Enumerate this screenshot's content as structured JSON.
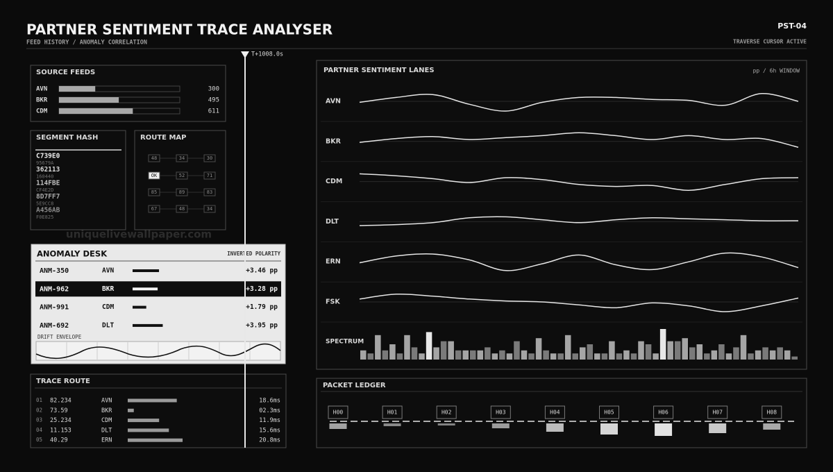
{
  "header": {
    "title": "PARTNER SENTIMENT TRACE ANALYSER",
    "subtitle": "FEED HISTORY / ANOMALY CORRELATION",
    "code": "PST-04",
    "status": "TRAVERSE CURSOR ACTIVE"
  },
  "watermark": "uniquelivewallpaper.com",
  "cursor": {
    "label": "T+1008.0s"
  },
  "source_feeds": {
    "title": "SOURCE FEEDS",
    "xlim": [
      0,
      1000
    ],
    "rows": [
      {
        "label": "AVN",
        "value": 300
      },
      {
        "label": "BKR",
        "value": 495
      },
      {
        "label": "CDM",
        "value": 611
      }
    ]
  },
  "segment_hash": {
    "title": "SEGMENT HASH",
    "items": [
      {
        "code": "C739E0",
        "sub": "95679A"
      },
      {
        "code": "362113",
        "sub": "160440"
      },
      {
        "code": "114FBE",
        "sub": "CF4E2D"
      },
      {
        "code": "8D7FF7",
        "sub": "5E9CC8"
      },
      {
        "code": "A456AB",
        "sub": "F0E825"
      }
    ]
  },
  "route_map": {
    "title": "ROUTE MAP",
    "grid": [
      [
        48,
        34,
        30
      ],
      [
        "OK",
        52,
        71
      ],
      [
        85,
        89,
        83
      ],
      [
        67,
        48,
        34
      ]
    ]
  },
  "anomaly_desk": {
    "title": "ANOMALY DESK",
    "tag": "INVERTED POLARITY",
    "selected": 1,
    "rows": [
      {
        "id": "ANM-350",
        "feed": "AVN",
        "value": 3.46,
        "value_label": "+3.46 pp"
      },
      {
        "id": "ANM-962",
        "feed": "BKR",
        "value": 3.28,
        "value_label": "+3.28 pp"
      },
      {
        "id": "ANM-991",
        "feed": "CDM",
        "value": 1.79,
        "value_label": "+1.79 pp"
      },
      {
        "id": "ANM-692",
        "feed": "DLT",
        "value": 3.95,
        "value_label": "+3.95 pp"
      }
    ],
    "drift_label": "DRIFT ENVELOPE"
  },
  "trace_route": {
    "title": "TRACE ROUTE",
    "rows": [
      {
        "index": "01",
        "value": 82.234,
        "feed": "AVN",
        "latency": 18.6,
        "latency_label": "18.6ms"
      },
      {
        "index": "02",
        "value": 73.59,
        "feed": "BKR",
        "latency": 2.3,
        "latency_label": "02.3ms"
      },
      {
        "index": "03",
        "value": 25.234,
        "feed": "CDM",
        "latency": 11.9,
        "latency_label": "11.9ms"
      },
      {
        "index": "04",
        "value": 11.153,
        "feed": "DLT",
        "latency": 15.6,
        "latency_label": "15.6ms"
      },
      {
        "index": "05",
        "value": 40.29,
        "feed": "ERN",
        "latency": 20.8,
        "latency_label": "20.8ms"
      }
    ]
  },
  "chart_data": {
    "type": "line",
    "title": "PARTNER SENTIMENT LANES",
    "unit": "pp / 6h WINDOW",
    "ylim": [
      -1,
      1
    ],
    "series": [
      {
        "name": "AVN",
        "color": "#e6e6e6",
        "values": [
          -0.1,
          0.4,
          0.7,
          -0.3,
          -1,
          -0.1,
          0.4,
          0.4,
          0.2,
          0.1,
          -0.4,
          0.8,
          0
        ]
      },
      {
        "name": "BKR",
        "color": "#e6e6e6",
        "values": [
          -0.1,
          0.3,
          0.5,
          0.2,
          0.4,
          0.6,
          0.9,
          0.6,
          0.2,
          0.6,
          0.2,
          0.3,
          -0.6
        ]
      },
      {
        "name": "CDM",
        "color": "#e6e6e6",
        "values": [
          0.8,
          0.6,
          0.3,
          -0.1,
          0.4,
          0.2,
          -0.3,
          -0.5,
          -0.4,
          -0.9,
          -0.3,
          0.3,
          0.4
        ]
      },
      {
        "name": "DLT",
        "color": "#e6e6e6",
        "values": [
          -0.4,
          -0.3,
          -0.1,
          0.4,
          0.5,
          0.2,
          -0.1,
          0.2,
          0.4,
          0.3,
          0.2,
          0.1,
          0.1
        ]
      },
      {
        "name": "ERN",
        "color": "#e6e6e6",
        "values": [
          -0.1,
          0.6,
          0.8,
          0.2,
          -0.9,
          -0.2,
          0.7,
          -0.3,
          -0.8,
          0,
          0.9,
          0.5,
          -0.6
        ]
      },
      {
        "name": "FSK",
        "color": "#e6e6e6",
        "values": [
          0.3,
          0.8,
          0.6,
          0.3,
          0.1,
          0,
          -0.3,
          -0.6,
          -0.1,
          -0.4,
          -1,
          -0.4,
          0.4
        ]
      }
    ],
    "spectrum": {
      "label": "SPECTRUM",
      "ylim": [
        0,
        10
      ],
      "values": [
        3,
        2,
        8,
        3,
        5,
        2,
        8,
        4,
        2,
        9,
        4,
        6,
        6,
        3,
        3,
        3,
        3,
        4,
        2,
        3,
        2,
        6,
        3,
        2,
        7,
        3,
        2,
        2,
        8,
        2,
        4,
        5,
        2,
        2,
        6,
        2,
        3,
        2,
        6,
        5,
        2,
        10,
        6,
        6,
        7,
        4,
        5,
        2,
        3,
        5,
        2,
        4,
        8,
        2,
        3,
        4,
        3,
        4,
        3,
        1
      ]
    }
  },
  "packet_ledger": {
    "title": "PACKET LEDGER",
    "ylim": [
      0,
      20
    ],
    "nodes": [
      {
        "label": "H00",
        "value": 8
      },
      {
        "label": "H01",
        "value": 4
      },
      {
        "label": "H02",
        "value": 3
      },
      {
        "label": "H03",
        "value": 7
      },
      {
        "label": "H04",
        "value": 12
      },
      {
        "label": "H05",
        "value": 16
      },
      {
        "label": "H06",
        "value": 18
      },
      {
        "label": "H07",
        "value": 14
      },
      {
        "label": "H08",
        "value": 9
      }
    ]
  }
}
